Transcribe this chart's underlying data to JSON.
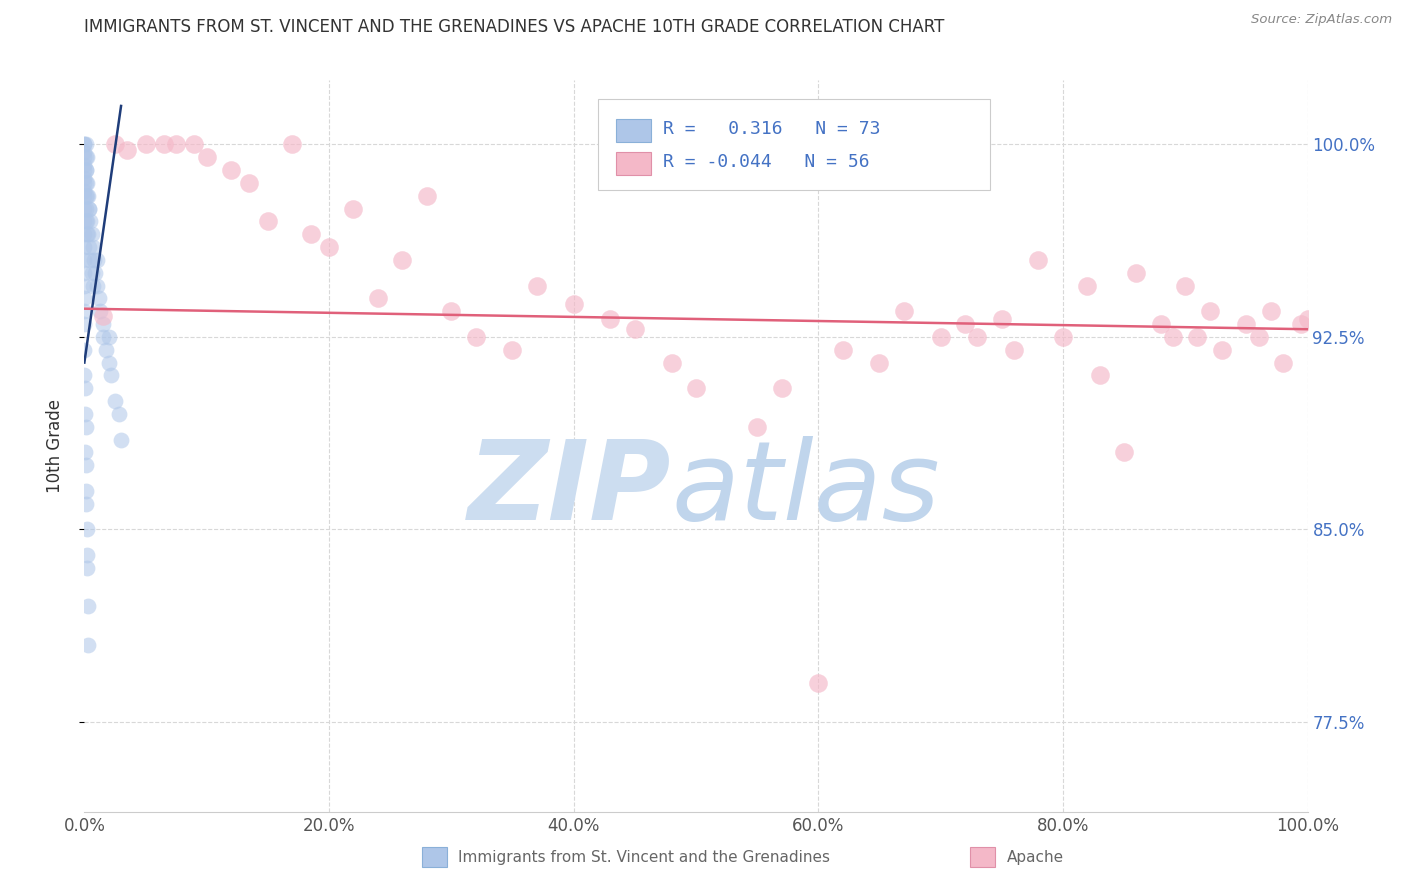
{
  "title": "IMMIGRANTS FROM ST. VINCENT AND THE GRENADINES VS APACHE 10TH GRADE CORRELATION CHART",
  "source": "Source: ZipAtlas.com",
  "ylabel": "10th Grade",
  "xlim": [
    0.0,
    100.0
  ],
  "ylim": [
    74.0,
    102.5
  ],
  "yticks": [
    77.5,
    85.0,
    92.5,
    100.0
  ],
  "xticks": [
    0.0,
    20.0,
    40.0,
    60.0,
    80.0,
    100.0
  ],
  "blue_R": 0.316,
  "blue_N": 73,
  "pink_R": -0.044,
  "pink_N": 56,
  "blue_color": "#aec6e8",
  "pink_color": "#f4b8c8",
  "blue_line_color": "#1f3d7a",
  "pink_line_color": "#e0607a",
  "watermark_zip_color": "#ccddf0",
  "watermark_atlas_color": "#c0d5ec",
  "grid_color": "#d8d8d8",
  "background_color": "#ffffff",
  "title_color": "#333333",
  "right_tick_color": "#4472c4",
  "legend_text_color": "#4472c4",
  "blue_scatter_x": [
    0.0,
    0.0,
    0.0,
    0.0,
    0.0,
    0.0,
    0.0,
    0.0,
    0.0,
    0.0,
    0.0,
    0.0,
    0.0,
    0.0,
    0.0,
    0.0,
    0.0,
    0.0,
    0.0,
    0.0,
    0.1,
    0.1,
    0.1,
    0.1,
    0.1,
    0.1,
    0.15,
    0.15,
    0.2,
    0.2,
    0.2,
    0.25,
    0.25,
    0.3,
    0.3,
    0.35,
    0.4,
    0.4,
    0.5,
    0.5,
    0.6,
    0.6,
    0.7,
    0.7,
    0.8,
    0.9,
    1.0,
    1.0,
    1.2,
    1.3,
    1.5,
    1.5,
    1.8,
    2.0,
    2.0,
    2.2,
    2.5,
    2.8,
    3.0,
    0.0,
    0.0,
    0.05,
    0.05,
    0.05,
    0.1,
    0.1,
    0.1,
    0.15,
    0.2,
    0.2,
    0.25,
    0.3,
    0.3
  ],
  "blue_scatter_y": [
    100.0,
    100.0,
    99.7,
    99.5,
    99.2,
    99.0,
    98.7,
    98.5,
    98.2,
    98.0,
    97.5,
    97.0,
    96.5,
    96.0,
    95.5,
    95.0,
    94.5,
    94.0,
    93.5,
    93.0,
    100.0,
    99.5,
    99.0,
    98.5,
    98.0,
    97.5,
    99.0,
    97.0,
    99.5,
    98.0,
    97.0,
    98.5,
    96.5,
    98.0,
    96.5,
    97.5,
    97.5,
    96.0,
    97.0,
    95.5,
    96.5,
    95.0,
    96.0,
    94.5,
    95.5,
    95.0,
    95.5,
    94.5,
    94.0,
    93.5,
    93.0,
    92.5,
    92.0,
    92.5,
    91.5,
    91.0,
    90.0,
    89.5,
    88.5,
    92.0,
    91.0,
    90.5,
    89.5,
    88.0,
    89.0,
    87.5,
    86.5,
    86.0,
    85.0,
    84.0,
    83.5,
    82.0,
    80.5
  ],
  "pink_scatter_x": [
    1.5,
    2.5,
    3.5,
    5.0,
    6.5,
    7.5,
    9.0,
    10.0,
    12.0,
    13.5,
    15.0,
    17.0,
    18.5,
    20.0,
    22.0,
    24.0,
    26.0,
    28.0,
    30.0,
    32.0,
    35.0,
    37.0,
    40.0,
    43.0,
    45.0,
    48.0,
    50.0,
    55.0,
    57.0,
    60.0,
    62.0,
    65.0,
    67.0,
    70.0,
    72.0,
    73.0,
    75.0,
    76.0,
    78.0,
    80.0,
    82.0,
    83.0,
    85.0,
    86.0,
    88.0,
    89.0,
    90.0,
    91.0,
    92.0,
    93.0,
    95.0,
    96.0,
    97.0,
    98.0,
    99.5,
    100.0
  ],
  "pink_scatter_y": [
    93.3,
    100.0,
    99.8,
    100.0,
    100.0,
    100.0,
    100.0,
    99.5,
    99.0,
    98.5,
    97.0,
    100.0,
    96.5,
    96.0,
    97.5,
    94.0,
    95.5,
    98.0,
    93.5,
    92.5,
    92.0,
    94.5,
    93.8,
    93.2,
    92.8,
    91.5,
    90.5,
    89.0,
    90.5,
    79.0,
    92.0,
    91.5,
    93.5,
    92.5,
    93.0,
    92.5,
    93.2,
    92.0,
    95.5,
    92.5,
    94.5,
    91.0,
    88.0,
    95.0,
    93.0,
    92.5,
    94.5,
    92.5,
    93.5,
    92.0,
    93.0,
    92.5,
    93.5,
    91.5,
    93.0,
    93.2
  ],
  "blue_trend_x": [
    0.0,
    3.0
  ],
  "blue_trend_y": [
    91.5,
    101.5
  ],
  "pink_trend_x": [
    0.0,
    100.0
  ],
  "pink_trend_y": [
    93.6,
    92.8
  ]
}
